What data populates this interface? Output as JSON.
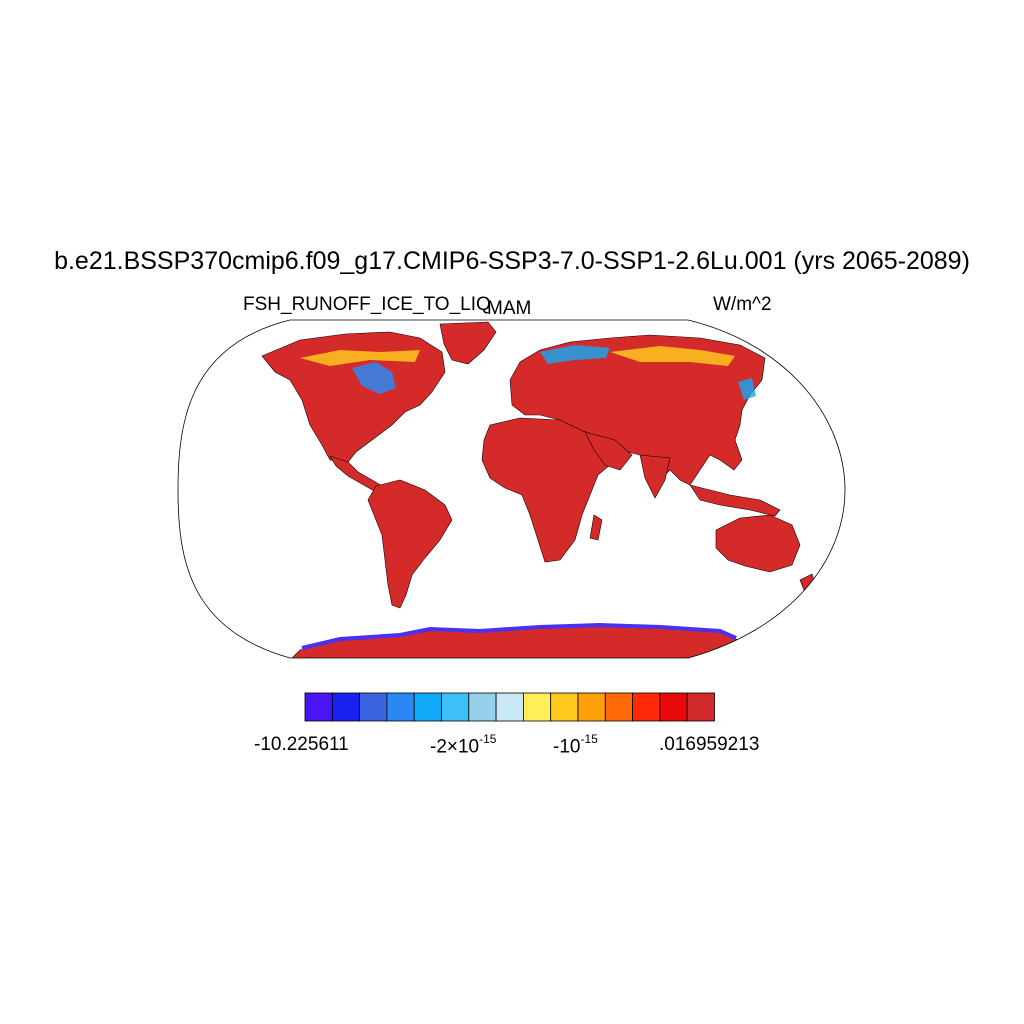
{
  "title": "b.e21.BSSP370cmip6.f09_g17.CMIP6-SSP3-7.0-SSP1-2.6Lu.001 (yrs 2065-2089)",
  "left_label": "FSH_RUNOFF_ICE_TO_LIQ",
  "center_label": "MAM",
  "right_label": "W/m^2",
  "colorbar": {
    "colors": [
      "#4a14f5",
      "#1a22f0",
      "#3c64e0",
      "#2a88f5",
      "#10aaf8",
      "#3cc0f5",
      "#96d0ea",
      "#c8e8f5",
      "#ffee5a",
      "#ffc81e",
      "#ff9f0a",
      "#ff6a0a",
      "#ff2a0a",
      "#e60a0a",
      "#d22a2a"
    ],
    "labels": {
      "min": "-10.225611",
      "mid1_base": "-2×10",
      "mid1_exp": "-15",
      "mid2_base": "-10",
      "mid2_exp": "-15",
      "max": ".016959213"
    }
  },
  "map_colors": {
    "land": "#d42a2a",
    "ocean": "#ffffff",
    "coast": "#1a0000",
    "ice_edge": "#4a30f0"
  }
}
